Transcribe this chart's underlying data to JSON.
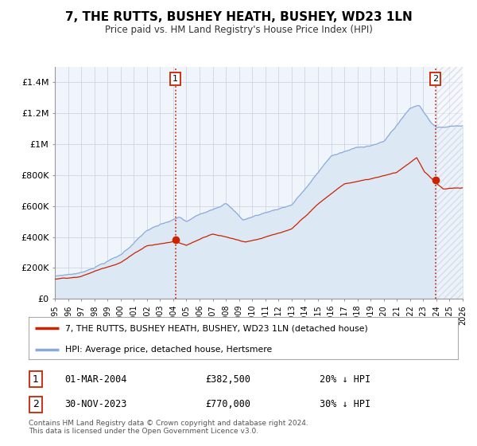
{
  "title": "7, THE RUTTS, BUSHEY HEATH, BUSHEY, WD23 1LN",
  "subtitle": "Price paid vs. HM Land Registry's House Price Index (HPI)",
  "legend_property": "7, THE RUTTS, BUSHEY HEATH, BUSHEY, WD23 1LN (detached house)",
  "legend_hpi": "HPI: Average price, detached house, Hertsmere",
  "transaction1_label": "1",
  "transaction1_date": "01-MAR-2004",
  "transaction1_price": "£382,500",
  "transaction1_hpi": "20% ↓ HPI",
  "transaction2_label": "2",
  "transaction2_date": "30-NOV-2023",
  "transaction2_price": "£770,000",
  "transaction2_hpi": "30% ↓ HPI",
  "footer": "Contains HM Land Registry data © Crown copyright and database right 2024.\nThis data is licensed under the Open Government Licence v3.0.",
  "property_color": "#cc2200",
  "hpi_color": "#88aadd",
  "hpi_fill_color": "#dde8f5",
  "plot_background": "#f0f4fb",
  "grid_color": "#c8d0e0",
  "vline_color": "#cc2200",
  "marker_color": "#cc2200",
  "ylim": [
    0,
    1500000
  ],
  "yticks": [
    0,
    200000,
    400000,
    600000,
    800000,
    1000000,
    1200000,
    1400000
  ],
  "ytick_labels": [
    "£0",
    "£200K",
    "£400K",
    "£600K",
    "£800K",
    "£1M",
    "£1.2M",
    "£1.4M"
  ],
  "transaction1_year": 2004.17,
  "transaction2_year": 2023.92,
  "transaction1_value": 382500,
  "transaction2_value": 770000,
  "xlim_left": 1995,
  "xlim_right": 2026,
  "hatch_start": 2024.08
}
